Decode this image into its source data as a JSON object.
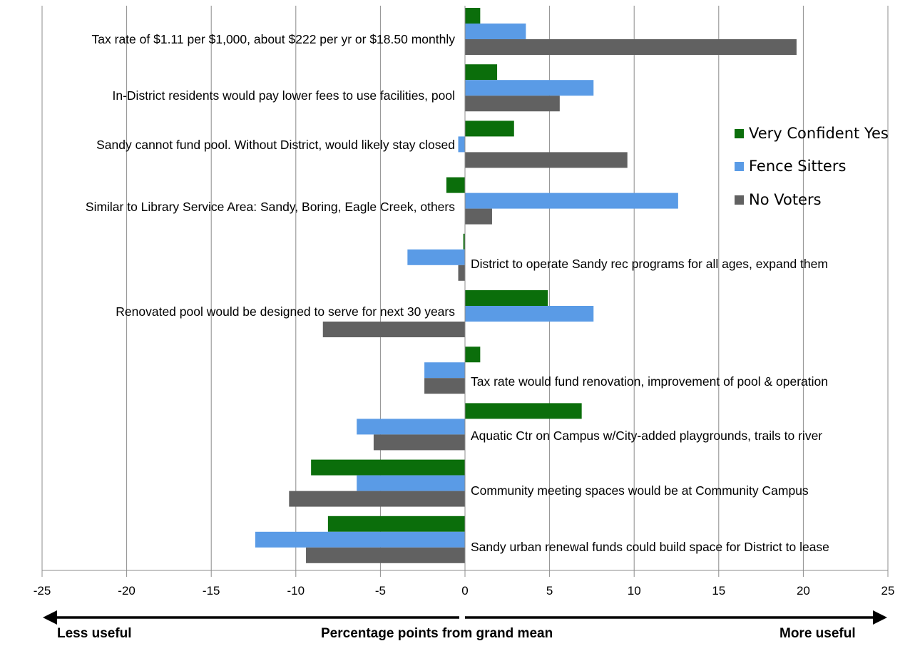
{
  "chart_data": {
    "type": "bar",
    "orientation": "horizontal",
    "categories": [
      "Tax rate of $1.11 per $1,000, about $222 per yr or $18.50 monthly",
      "In-District residents would pay lower fees to use facilities, pool",
      "Sandy cannot fund pool. Without District, would likely stay closed",
      "Similar to Library Service Area: Sandy, Boring, Eagle Creek, others",
      "District to operate Sandy rec programs for all ages, expand them",
      "Renovated pool would be designed to serve for next 30 years",
      "Tax rate would fund renovation, improvement of pool & operation",
      "Aquatic Ctr on Campus w/City-added playgrounds, trails to river",
      "Community meeting spaces would be at Community Campus",
      "Sandy urban renewal funds could build space for District to lease"
    ],
    "series": [
      {
        "name": "Very Confident Yes",
        "color": "#0b6e0b",
        "values": [
          0.9,
          1.9,
          2.9,
          -1.1,
          -0.1,
          4.9,
          0.9,
          6.9,
          -9.1,
          -8.1
        ]
      },
      {
        "name": "Fence Sitters",
        "color": "#5a9be6",
        "values": [
          3.6,
          7.6,
          -0.4,
          12.6,
          -3.4,
          7.6,
          -2.4,
          -6.4,
          -6.4,
          -12.4
        ]
      },
      {
        "name": "No Voters",
        "color": "#616161",
        "values": [
          19.6,
          5.6,
          9.6,
          1.6,
          -0.4,
          -8.4,
          -2.4,
          -5.4,
          -10.4,
          -9.4
        ]
      }
    ],
    "xlim": [
      -25,
      25
    ],
    "xticks": [
      "-25",
      "-20",
      "-15",
      "-10",
      "-5",
      "0",
      "5",
      "10",
      "15",
      "20",
      "25"
    ],
    "grid": true,
    "legend_position": "right",
    "xlabel": "Percentage points from grand mean",
    "left_note": "Less useful",
    "right_note": "More useful"
  }
}
